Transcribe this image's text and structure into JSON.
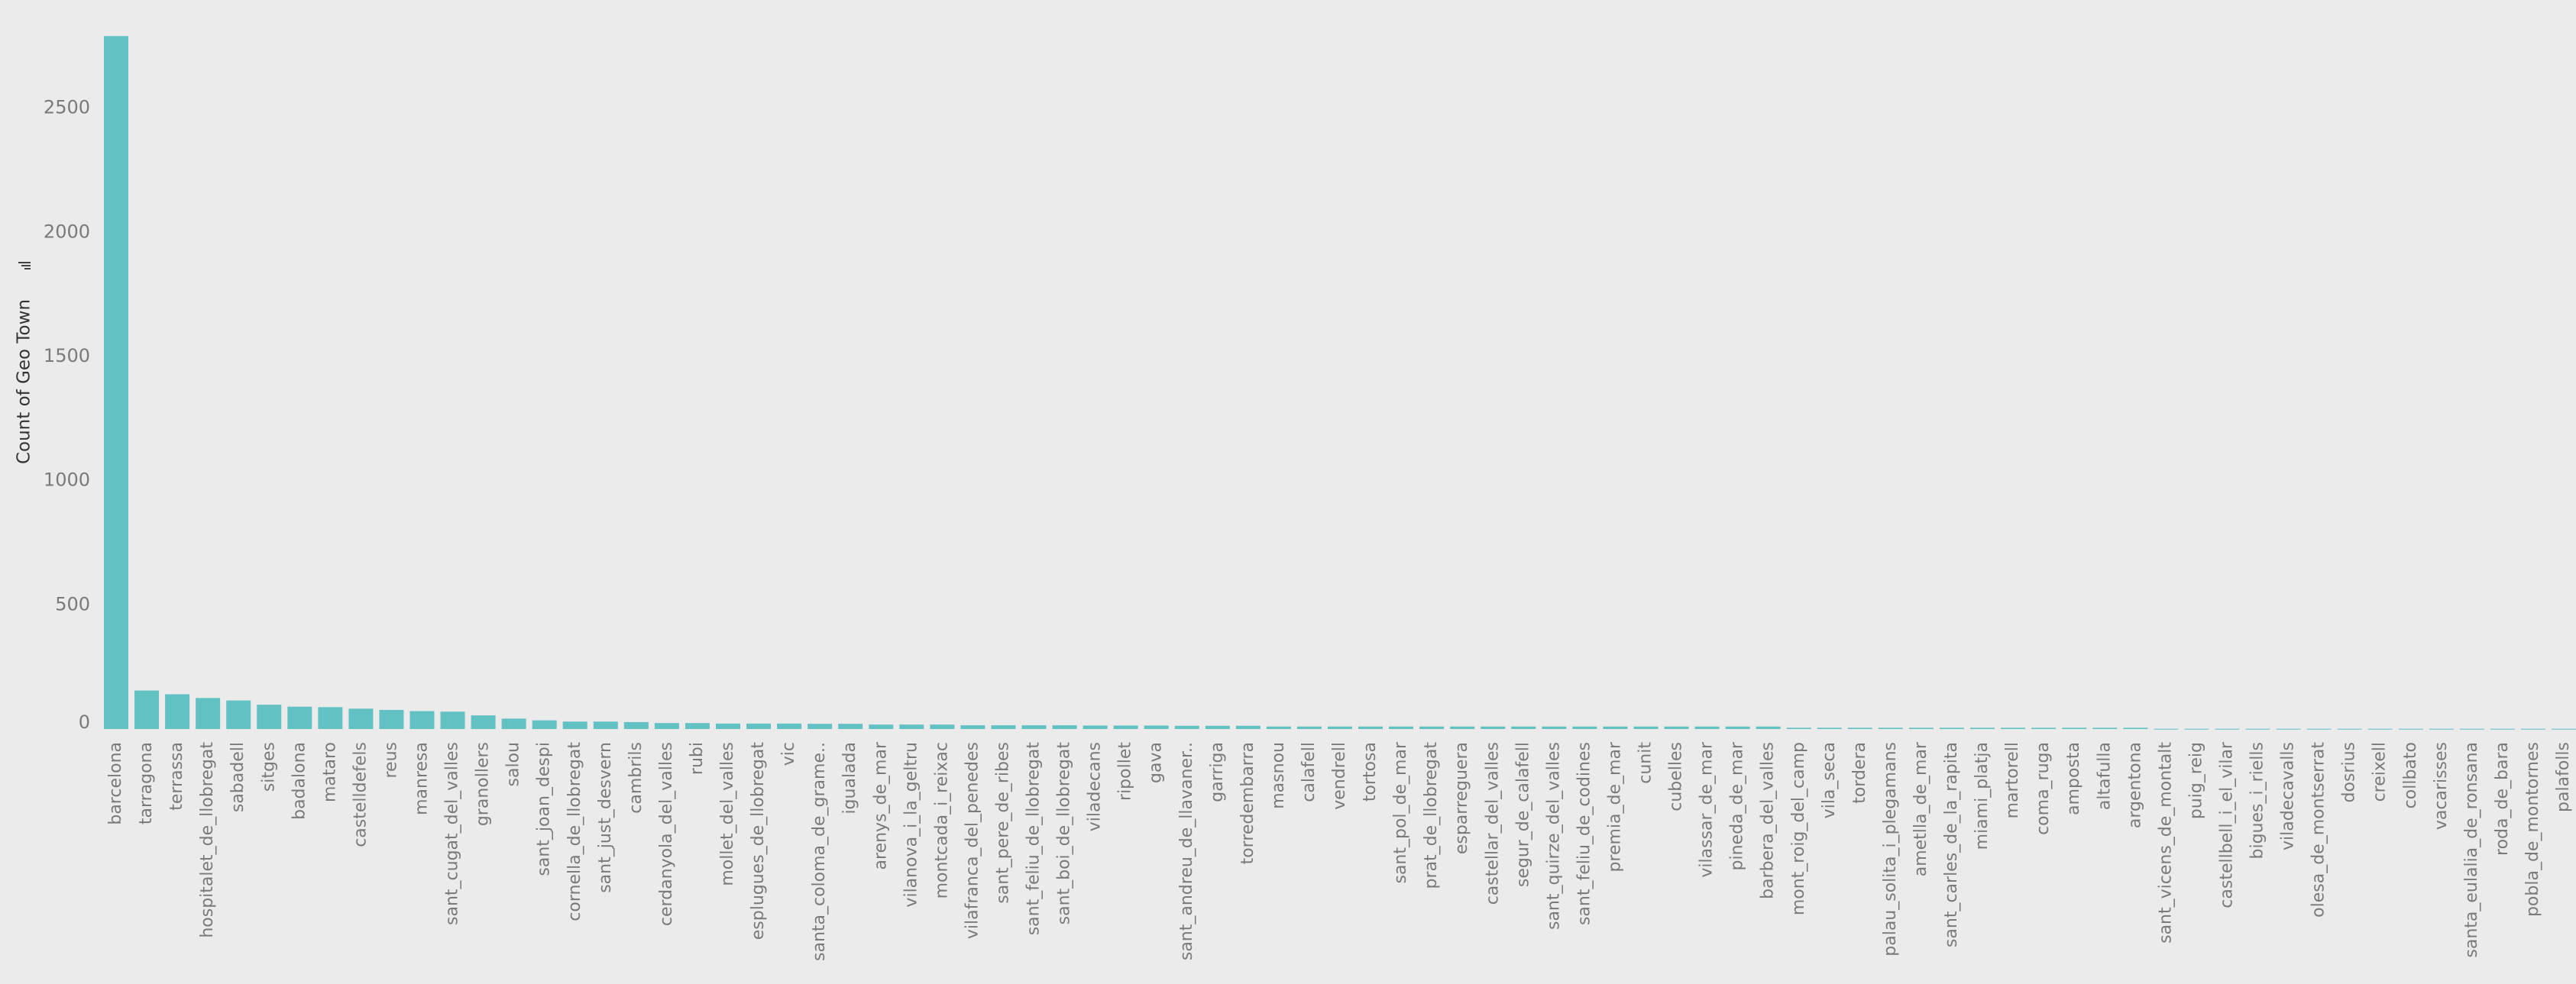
{
  "chart_data": {
    "type": "bar",
    "ylabel": "Count of Geo Town",
    "color": "#62c1c3",
    "ylim": [
      0,
      2800
    ],
    "yticks": [
      0,
      500,
      1000,
      1500,
      2000,
      2500
    ],
    "grid": false,
    "categories": [
      "barcelona",
      "tarragona",
      "terrassa",
      "hospitalet_de_llobregat",
      "sabadell",
      "sitges",
      "badalona",
      "mataro",
      "castelldefels",
      "reus",
      "manresa",
      "sant_cugat_del_valles",
      "granollers",
      "salou",
      "sant_joan_despi",
      "cornella_de_llobregat",
      "sant_just_desvern",
      "cambrils",
      "cerdanyola_del_valles",
      "rubi",
      "mollet_del_valles",
      "esplugues_de_llobregat",
      "vic",
      "santa_coloma_de_grame..",
      "igualada",
      "arenys_de_mar",
      "vilanova_i_la_geltru",
      "montcada_i_reixac",
      "vilafranca_del_penedes",
      "sant_pere_de_ribes",
      "sant_feliu_de_llobregat",
      "sant_boi_de_llobregat",
      "viladecans",
      "ripollet",
      "gava",
      "sant_andreu_de_llavaner..",
      "garriga",
      "torredembarra",
      "masnou",
      "calafell",
      "vendrell",
      "tortosa",
      "sant_pol_de_mar",
      "prat_de_llobregat",
      "esparreguera",
      "castellar_del_valles",
      "segur_de_calafell",
      "sant_quirze_del_valles",
      "sant_feliu_de_codines",
      "premia_de_mar",
      "cunit",
      "cubelles",
      "vilassar_de_mar",
      "pineda_de_mar",
      "barbera_del_valles",
      "mont_roig_del_camp",
      "vila_seca",
      "tordera",
      "palau_solita_i_plegamans",
      "ametlla_de_mar",
      "sant_carles_de_la_rapita",
      "miami_platja",
      "martorell",
      "coma_ruga",
      "amposta",
      "altafulla",
      "argentona",
      "sant_vicens_de_montalt",
      "puig_reig",
      "castellbell_i_el_vilar",
      "bigues_i_riells",
      "viladecavalls",
      "olesa_de_montserrat",
      "dosrius",
      "creixell",
      "collbato",
      "vacarisses",
      "santa_eulalia_de_ronsana",
      "roda_de_bara",
      "pobla_de_montornes",
      "palafolls"
    ],
    "values": [
      2790,
      155,
      140,
      125,
      115,
      98,
      90,
      88,
      82,
      77,
      72,
      70,
      55,
      42,
      35,
      30,
      30,
      28,
      24,
      24,
      22,
      22,
      22,
      21,
      21,
      18,
      18,
      18,
      15,
      15,
      15,
      15,
      14,
      14,
      14,
      13,
      13,
      13,
      10,
      10,
      10,
      10,
      10,
      10,
      10,
      10,
      10,
      10,
      10,
      10,
      10,
      10,
      10,
      10,
      10,
      5,
      5,
      5,
      5,
      5,
      5,
      5,
      5,
      5,
      5,
      5,
      5,
      1,
      1,
      1,
      1,
      1,
      1,
      1,
      1,
      1,
      1,
      1,
      1,
      1,
      1
    ]
  }
}
